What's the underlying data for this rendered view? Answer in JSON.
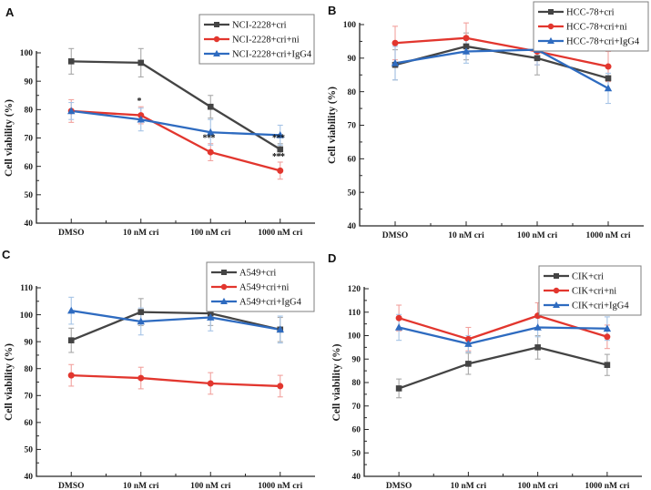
{
  "figure": {
    "background": "#ffffff",
    "axis_color": "#262626"
  },
  "chart_data": [
    {
      "panel": "A",
      "type": "line",
      "ylabel": "Cell viability (%)",
      "ylim": [
        40,
        100
      ],
      "ytick_step": 10,
      "ytick_minor_step": 5,
      "grid": false,
      "legend_position": "top-right",
      "categories": [
        "DMSO",
        "10 nM cri",
        "100 nM cri",
        "1000 nM cri"
      ],
      "series": [
        {
          "name": "NCI-2228+cri",
          "marker": "square",
          "color": "#444444",
          "error_color": "#a8a8a8",
          "values": [
            97,
            96.5,
            81,
            66
          ],
          "errors": [
            4.5,
            5,
            4,
            2
          ]
        },
        {
          "name": "NCI-2228+cri+ni",
          "marker": "circle",
          "color": "#e2362e",
          "error_color": "#f2a29e",
          "values": [
            79.5,
            78,
            65,
            58.5
          ],
          "errors": [
            4,
            3,
            3,
            3
          ]
        },
        {
          "name": "NCI-2228+cri+IgG4",
          "marker": "triangle",
          "color": "#2e6bc0",
          "error_color": "#a6c4e6",
          "values": [
            79.5,
            76.5,
            72,
            71
          ],
          "errors": [
            3,
            4,
            4.5,
            3.5
          ]
        }
      ],
      "annotations": [
        {
          "text": "*",
          "series_index": 1,
          "point_index": 1
        },
        {
          "text": "***",
          "series_index": 1,
          "point_index": 2
        },
        {
          "text": "***",
          "series_index": 0,
          "point_index": 3
        },
        {
          "text": "***",
          "series_index": 1,
          "point_index": 3
        }
      ]
    },
    {
      "panel": "B",
      "type": "line",
      "ylabel": "Cell viability (%)",
      "ylim": [
        40,
        100
      ],
      "ytick_step": 10,
      "ytick_minor_step": 5,
      "grid": false,
      "legend_position": "top-right",
      "categories": [
        "DMSO",
        "10 nM cri",
        "100 nM cri",
        "1000 nM cri"
      ],
      "series": [
        {
          "name": "HCC-78+cri",
          "marker": "square",
          "color": "#444444",
          "error_color": "#a8a8a8",
          "values": [
            88,
            93.5,
            90,
            84
          ],
          "errors": [
            4.5,
            4,
            5,
            3.5
          ]
        },
        {
          "name": "HCC-78+cri+ni",
          "marker": "circle",
          "color": "#e2362e",
          "error_color": "#f2a29e",
          "values": [
            94.5,
            96,
            92,
            87.5
          ],
          "errors": [
            5,
            4.5,
            4,
            4.5
          ]
        },
        {
          "name": "HCC-78+cri+IgG4",
          "marker": "triangle",
          "color": "#2e6bc0",
          "error_color": "#a6c4e6",
          "values": [
            88.5,
            92,
            92.5,
            81
          ],
          "errors": [
            5,
            3.5,
            4.5,
            4.5
          ]
        }
      ],
      "annotations": []
    },
    {
      "panel": "C",
      "type": "line",
      "ylabel": "Cell viability (%)",
      "ylim": [
        40,
        110
      ],
      "ytick_step": 10,
      "ytick_minor_step": 5,
      "grid": false,
      "legend_position": "top-right",
      "categories": [
        "DMSO",
        "10 nM cri",
        "100 nM cri",
        "1000 nM cri"
      ],
      "series": [
        {
          "name": "A549+cri",
          "marker": "square",
          "color": "#444444",
          "error_color": "#a8a8a8",
          "values": [
            90.5,
            101,
            100.5,
            94.5
          ],
          "errors": [
            4.5,
            5,
            4.5,
            4.5
          ]
        },
        {
          "name": "A549+cri+ni",
          "marker": "circle",
          "color": "#e2362e",
          "error_color": "#f2a29e",
          "values": [
            77.5,
            76.5,
            74.5,
            73.5
          ],
          "errors": [
            4,
            4,
            4,
            4
          ]
        },
        {
          "name": "A549+cri+IgG4",
          "marker": "triangle",
          "color": "#2e6bc0",
          "error_color": "#a6c4e6",
          "values": [
            101.5,
            97.5,
            99,
            94.5
          ],
          "errors": [
            5,
            5,
            5,
            5
          ]
        }
      ],
      "annotations": []
    },
    {
      "panel": "D",
      "type": "line",
      "ylabel": "Cell viability (%)",
      "ylim": [
        40,
        120
      ],
      "ytick_step": 10,
      "ytick_minor_step": 5,
      "grid": false,
      "legend_position": "top-right",
      "categories": [
        "DMSO",
        "10 nM cri",
        "100 nM cri",
        "1000 nM cri"
      ],
      "series": [
        {
          "name": "CIK+cri",
          "marker": "square",
          "color": "#444444",
          "error_color": "#a8a8a8",
          "values": [
            77.5,
            88,
            95,
            87.5
          ],
          "errors": [
            4,
            4.5,
            5,
            4.5
          ]
        },
        {
          "name": "CIK+cri+ni",
          "marker": "circle",
          "color": "#e2362e",
          "error_color": "#f2a29e",
          "values": [
            107.5,
            98.5,
            108.5,
            99.5
          ],
          "errors": [
            5.5,
            5,
            5.5,
            5
          ]
        },
        {
          "name": "CIK+cri+IgG4",
          "marker": "triangle",
          "color": "#2e6bc0",
          "error_color": "#a6c4e6",
          "values": [
            103.5,
            96.5,
            103.5,
            103
          ],
          "errors": [
            5.5,
            3.5,
            4,
            5
          ]
        }
      ],
      "annotations": []
    }
  ]
}
